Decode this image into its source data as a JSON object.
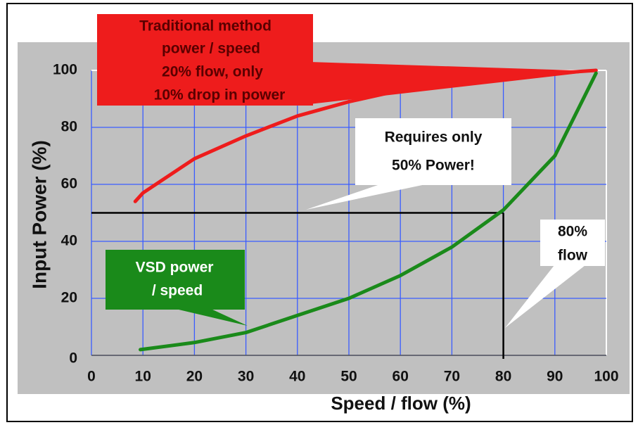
{
  "chart_data": {
    "type": "line",
    "x_label": "Speed / flow (%)",
    "y_label": "Input Power (%)",
    "xlim": [
      0,
      100
    ],
    "ylim": [
      0,
      100
    ],
    "xticks": [
      0,
      10,
      20,
      30,
      40,
      50,
      60,
      70,
      80,
      90,
      100
    ],
    "yticks": [
      0,
      20,
      40,
      60,
      80,
      100
    ],
    "grid": true,
    "series": [
      {
        "name": "Traditional method",
        "color": "#ee1c1c",
        "x": [
          8.5,
          10,
          20,
          30,
          40,
          50,
          60,
          70,
          80,
          90,
          98
        ],
        "values": [
          54,
          57,
          69,
          77,
          84,
          89,
          93,
          96,
          97.5,
          99,
          100
        ]
      },
      {
        "name": "VSD",
        "color": "#1a8a1a",
        "x": [
          9.5,
          20,
          30,
          40,
          50,
          60,
          70,
          80,
          90,
          98
        ],
        "values": [
          2,
          4.5,
          8,
          14,
          20,
          28,
          38,
          51,
          70,
          99
        ]
      }
    ],
    "reference_x": 80,
    "reference_y": 50,
    "annotations": [
      {
        "lines": [
          "Traditional method",
          "power / speed",
          "20% flow, only",
          "10% drop in power"
        ]
      },
      {
        "lines": [
          "Requires only",
          "50% Power!"
        ]
      },
      {
        "lines": [
          "80%",
          "flow"
        ]
      },
      {
        "lines": [
          "VSD power",
          "/ speed"
        ]
      }
    ]
  }
}
